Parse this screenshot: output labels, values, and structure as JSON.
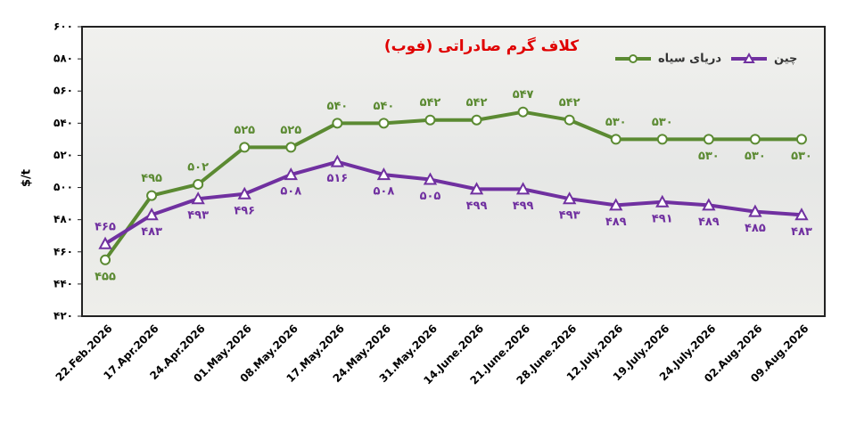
{
  "chart_data": {
    "type": "line",
    "title": "کلاف گرم صادراتی (فوب)",
    "y_label": "$/t",
    "categories": [
      "22.Feb.2026",
      "17.Apr.2026",
      "24.Apr.2026",
      "01.May.2026",
      "08.May.2026",
      "17.May.2026",
      "24.May.2026",
      "31.May.2026",
      "14.June.2026",
      "21.June.2026",
      "28.June.2026",
      "12.July.2026",
      "19.July.2026",
      "24.July.2026",
      "02.Aug.2026",
      "09.Aug.2026"
    ],
    "series": [
      {
        "name": "دریای سیاه",
        "color": "#5b8a32",
        "marker": "circle",
        "values": [
          455,
          495,
          502,
          525,
          525,
          540,
          540,
          542,
          542,
          547,
          542,
          530,
          530,
          530,
          530,
          530
        ],
        "value_labels": [
          "۴۵۵",
          "۴۹۵",
          "۵۰۲",
          "۵۲۵",
          "۵۲۵",
          "۵۴۰",
          "۵۴۰",
          "۵۴۲",
          "۵۴۲",
          "۵۴۷",
          "۵۴۲",
          "۵۳۰",
          "۵۳۰",
          "۵۳۰",
          "۵۳۰",
          "۵۳۰"
        ]
      },
      {
        "name": "چین",
        "color": "#7030a0",
        "marker": "triangle",
        "values": [
          465,
          483,
          493,
          496,
          508,
          516,
          508,
          505,
          499,
          499,
          493,
          489,
          491,
          489,
          485,
          483
        ],
        "value_labels": [
          "۴۶۵",
          "۴۸۳",
          "۴۹۳",
          "۴۹۶",
          "۵۰۸",
          "۵۱۶",
          "۵۰۸",
          "۵۰۵",
          "۴۹۹",
          "۴۹۹",
          "۴۹۳",
          "۴۸۹",
          "۴۹۱",
          "۴۸۹",
          "۴۸۵",
          "۴۸۳"
        ]
      }
    ],
    "ylim": [
      420,
      600
    ],
    "yticks": [
      {
        "value": 420,
        "label": "۴۲۰"
      },
      {
        "value": 440,
        "label": "۴۴۰"
      },
      {
        "value": 460,
        "label": "۴۶۰"
      },
      {
        "value": 480,
        "label": "۴۸۰"
      },
      {
        "value": 500,
        "label": "۵۰۰"
      },
      {
        "value": 520,
        "label": "۵۲۰"
      },
      {
        "value": 540,
        "label": "۵۴۰"
      },
      {
        "value": 560,
        "label": "۵۶۰"
      },
      {
        "value": 580,
        "label": "۵۸۰"
      },
      {
        "value": 600,
        "label": "۶۰۰"
      }
    ],
    "legend": "top-right",
    "title_color": "#e00000"
  }
}
